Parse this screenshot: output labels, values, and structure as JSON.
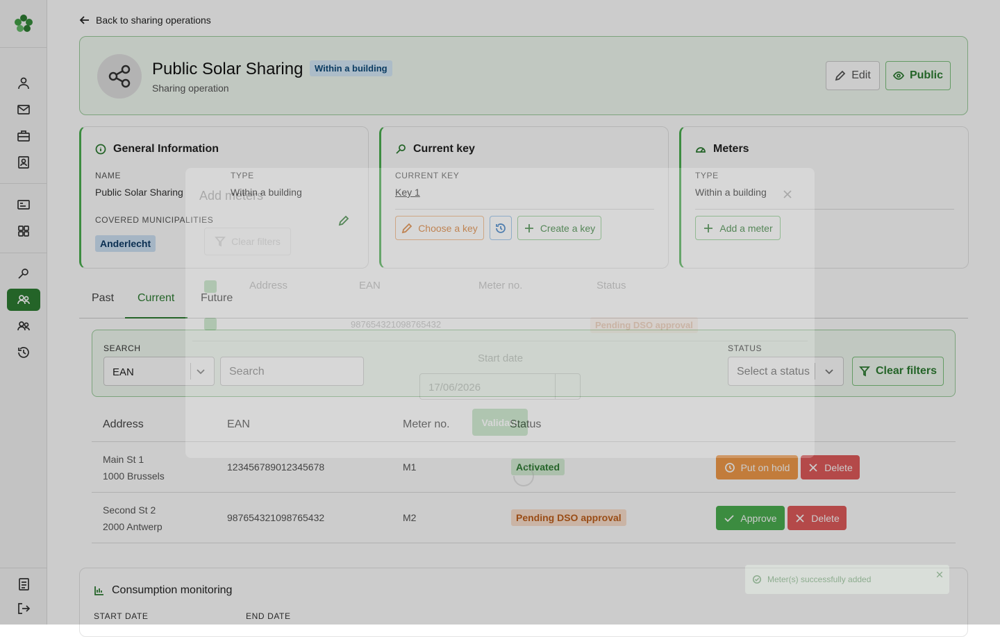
{
  "back_link": "Back to sharing operations",
  "header": {
    "title": "Public Solar Sharing",
    "badge": "Within a building",
    "subtitle": "Sharing operation",
    "edit": "Edit",
    "public": "Public"
  },
  "general": {
    "title": "General Information",
    "name_label": "NAME",
    "name": "Public Solar Sharing",
    "type_label": "TYPE",
    "type": "Within a building",
    "municipalities_label": "COVERED MUNICIPALITIES",
    "municipalities": [
      "Anderlecht"
    ]
  },
  "key": {
    "title": "Current key",
    "label": "CURRENT KEY",
    "value": "Key 1",
    "choose": "Choose a key",
    "create": "Create a key"
  },
  "meters": {
    "title": "Meters",
    "type_label": "TYPE",
    "type": "Within a building",
    "add": "Add a meter"
  },
  "tabs": [
    "Past",
    "Current",
    "Future"
  ],
  "filters": {
    "search_label": "SEARCH",
    "search_by": "EAN",
    "search_placeholder": "Search",
    "status_label": "STATUS",
    "status_placeholder": "Select a status",
    "clear": "Clear filters"
  },
  "table": {
    "headers": [
      "Address",
      "EAN",
      "Meter no.",
      "Status"
    ],
    "rows": [
      {
        "address": [
          "Main St 1",
          "1000 Brussels"
        ],
        "ean": "123456789012345678",
        "meter": "M1",
        "status": "Activated",
        "actions": [
          "Put on hold",
          "Delete"
        ]
      },
      {
        "address": [
          "Second St 2",
          "2000 Antwerp"
        ],
        "ean": "987654321098765432",
        "meter": "M2",
        "status": "Pending DSO approval",
        "actions": [
          "Approve",
          "Delete"
        ]
      }
    ]
  },
  "consumption": {
    "title": "Consumption monitoring",
    "start": "START DATE",
    "end": "END DATE"
  },
  "modal": {
    "title": "Add meters",
    "clear": "Clear filters",
    "headers": [
      "Address",
      "EAN",
      "Meter no.",
      "Status"
    ],
    "row": {
      "ean": "987654321098765432",
      "status": "Pending DSO approval"
    },
    "date_label": "Start date",
    "date": "17/06/2026",
    "validate": "Validate"
  },
  "toast": "Meter(s) successfully added"
}
